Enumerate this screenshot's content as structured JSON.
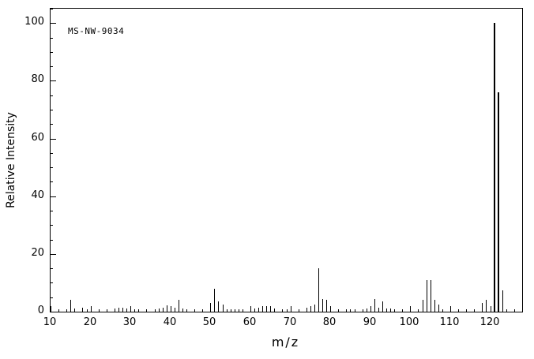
{
  "chart_data": {
    "type": "bar",
    "subtype": "mass-spectrum",
    "annotation": "MS-NW-9034",
    "xlabel": "m/z",
    "ylabel": "Relative Intensity",
    "xlim": [
      10,
      128
    ],
    "ylim": [
      0,
      105
    ],
    "xticks": [
      10,
      20,
      30,
      40,
      50,
      60,
      70,
      80,
      90,
      100,
      110,
      120
    ],
    "yticks": [
      0,
      20,
      40,
      60,
      80,
      100
    ],
    "x_minor_step": 2,
    "y_minor_step": 5,
    "legend": "none",
    "grid": false,
    "peaks": [
      [
        15,
        4
      ],
      [
        16,
        1
      ],
      [
        18,
        1.5
      ],
      [
        19,
        0.8
      ],
      [
        26,
        1
      ],
      [
        27,
        1.3
      ],
      [
        28,
        1.5
      ],
      [
        29,
        1
      ],
      [
        31,
        0.8
      ],
      [
        32,
        0.8
      ],
      [
        37,
        1
      ],
      [
        38,
        1.5
      ],
      [
        39,
        2.2
      ],
      [
        40,
        0.8
      ],
      [
        41,
        1.5
      ],
      [
        42,
        4
      ],
      [
        43,
        1
      ],
      [
        44,
        0.8
      ],
      [
        46,
        0.8
      ],
      [
        50,
        3
      ],
      [
        51,
        8
      ],
      [
        52,
        3.5
      ],
      [
        53,
        2.5
      ],
      [
        55,
        0.8
      ],
      [
        57,
        0.8
      ],
      [
        61,
        1
      ],
      [
        62,
        1.5
      ],
      [
        63,
        2
      ],
      [
        64,
        2
      ],
      [
        65,
        2
      ],
      [
        66,
        1
      ],
      [
        69,
        0.8
      ],
      [
        74,
        1.5
      ],
      [
        75,
        2
      ],
      [
        76,
        2.5
      ],
      [
        77,
        15
      ],
      [
        78,
        4.5
      ],
      [
        79,
        4
      ],
      [
        80,
        1
      ],
      [
        85,
        0.8
      ],
      [
        89,
        1
      ],
      [
        91,
        4.5
      ],
      [
        92,
        1.5
      ],
      [
        93,
        3.5
      ],
      [
        94,
        1
      ],
      [
        95,
        1
      ],
      [
        98,
        0.8
      ],
      [
        103,
        4
      ],
      [
        104,
        11
      ],
      [
        105,
        11
      ],
      [
        106,
        4
      ],
      [
        107,
        2.5
      ],
      [
        118,
        3
      ],
      [
        119,
        4
      ],
      [
        121,
        100
      ],
      [
        122,
        76
      ],
      [
        123,
        7.5
      ]
    ]
  },
  "colors": {
    "line": "#000000",
    "background": "#ffffff",
    "text": "#000000"
  }
}
